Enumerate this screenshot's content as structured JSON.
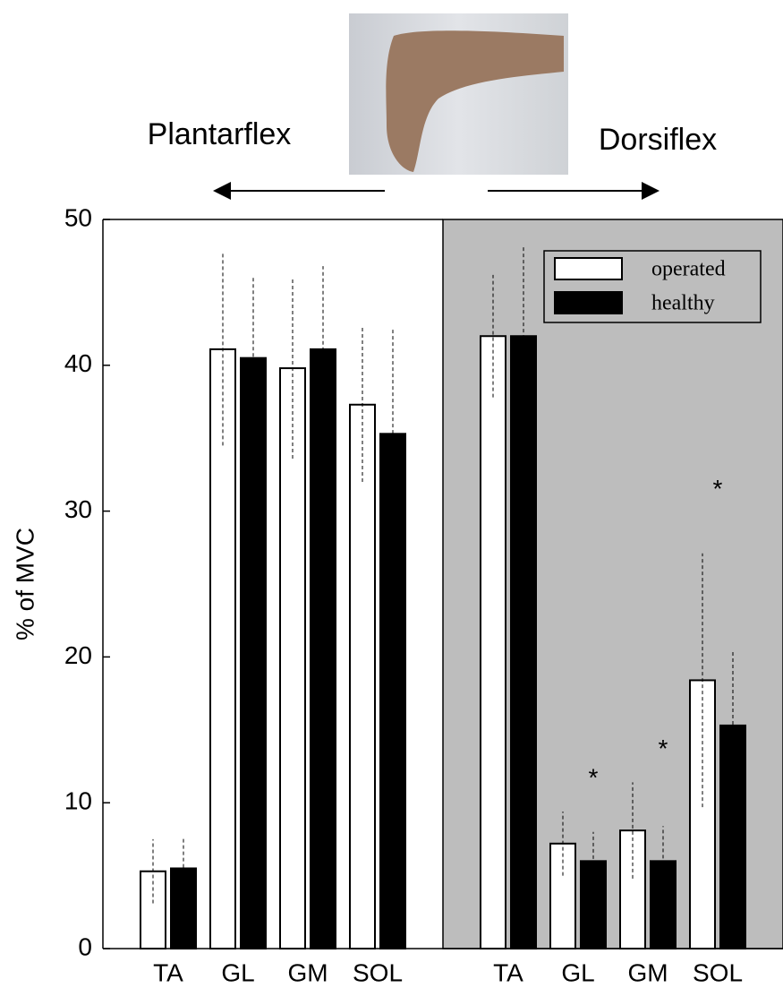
{
  "chart_data": {
    "type": "bar",
    "ylabel": "% of MVC",
    "ylim": [
      0,
      50
    ],
    "yticks": [
      0,
      10,
      20,
      30,
      40,
      50
    ],
    "legend": "upper right",
    "series": [
      {
        "name": "operated",
        "color": "#ffffff"
      },
      {
        "name": "healthy",
        "color": "#000000"
      }
    ],
    "panels": [
      {
        "title": "Plantarflex",
        "shaded": false,
        "categories": [
          "TA",
          "GL",
          "GM",
          "SOL"
        ],
        "values": [
          [
            5.3,
            41.1,
            39.8,
            37.3
          ],
          [
            5.5,
            40.5,
            41.1,
            35.3
          ]
        ],
        "errors": [
          [
            2.2,
            6.6,
            6.2,
            5.3
          ],
          [
            2.1,
            5.5,
            5.7,
            7.3
          ]
        ]
      },
      {
        "title": "Dorsiflex",
        "shaded": true,
        "categories": [
          "TA",
          "GL",
          "GM",
          "SOL"
        ],
        "values": [
          [
            42.0,
            7.2,
            8.1,
            18.4
          ],
          [
            42.0,
            6.0,
            6.0,
            15.3
          ]
        ],
        "errors": [
          [
            4.2,
            2.2,
            3.3,
            8.7
          ],
          [
            6.2,
            2.0,
            2.4,
            5.1
          ]
        ],
        "significance": [
          null,
          "*",
          "*",
          "*"
        ]
      }
    ]
  }
}
